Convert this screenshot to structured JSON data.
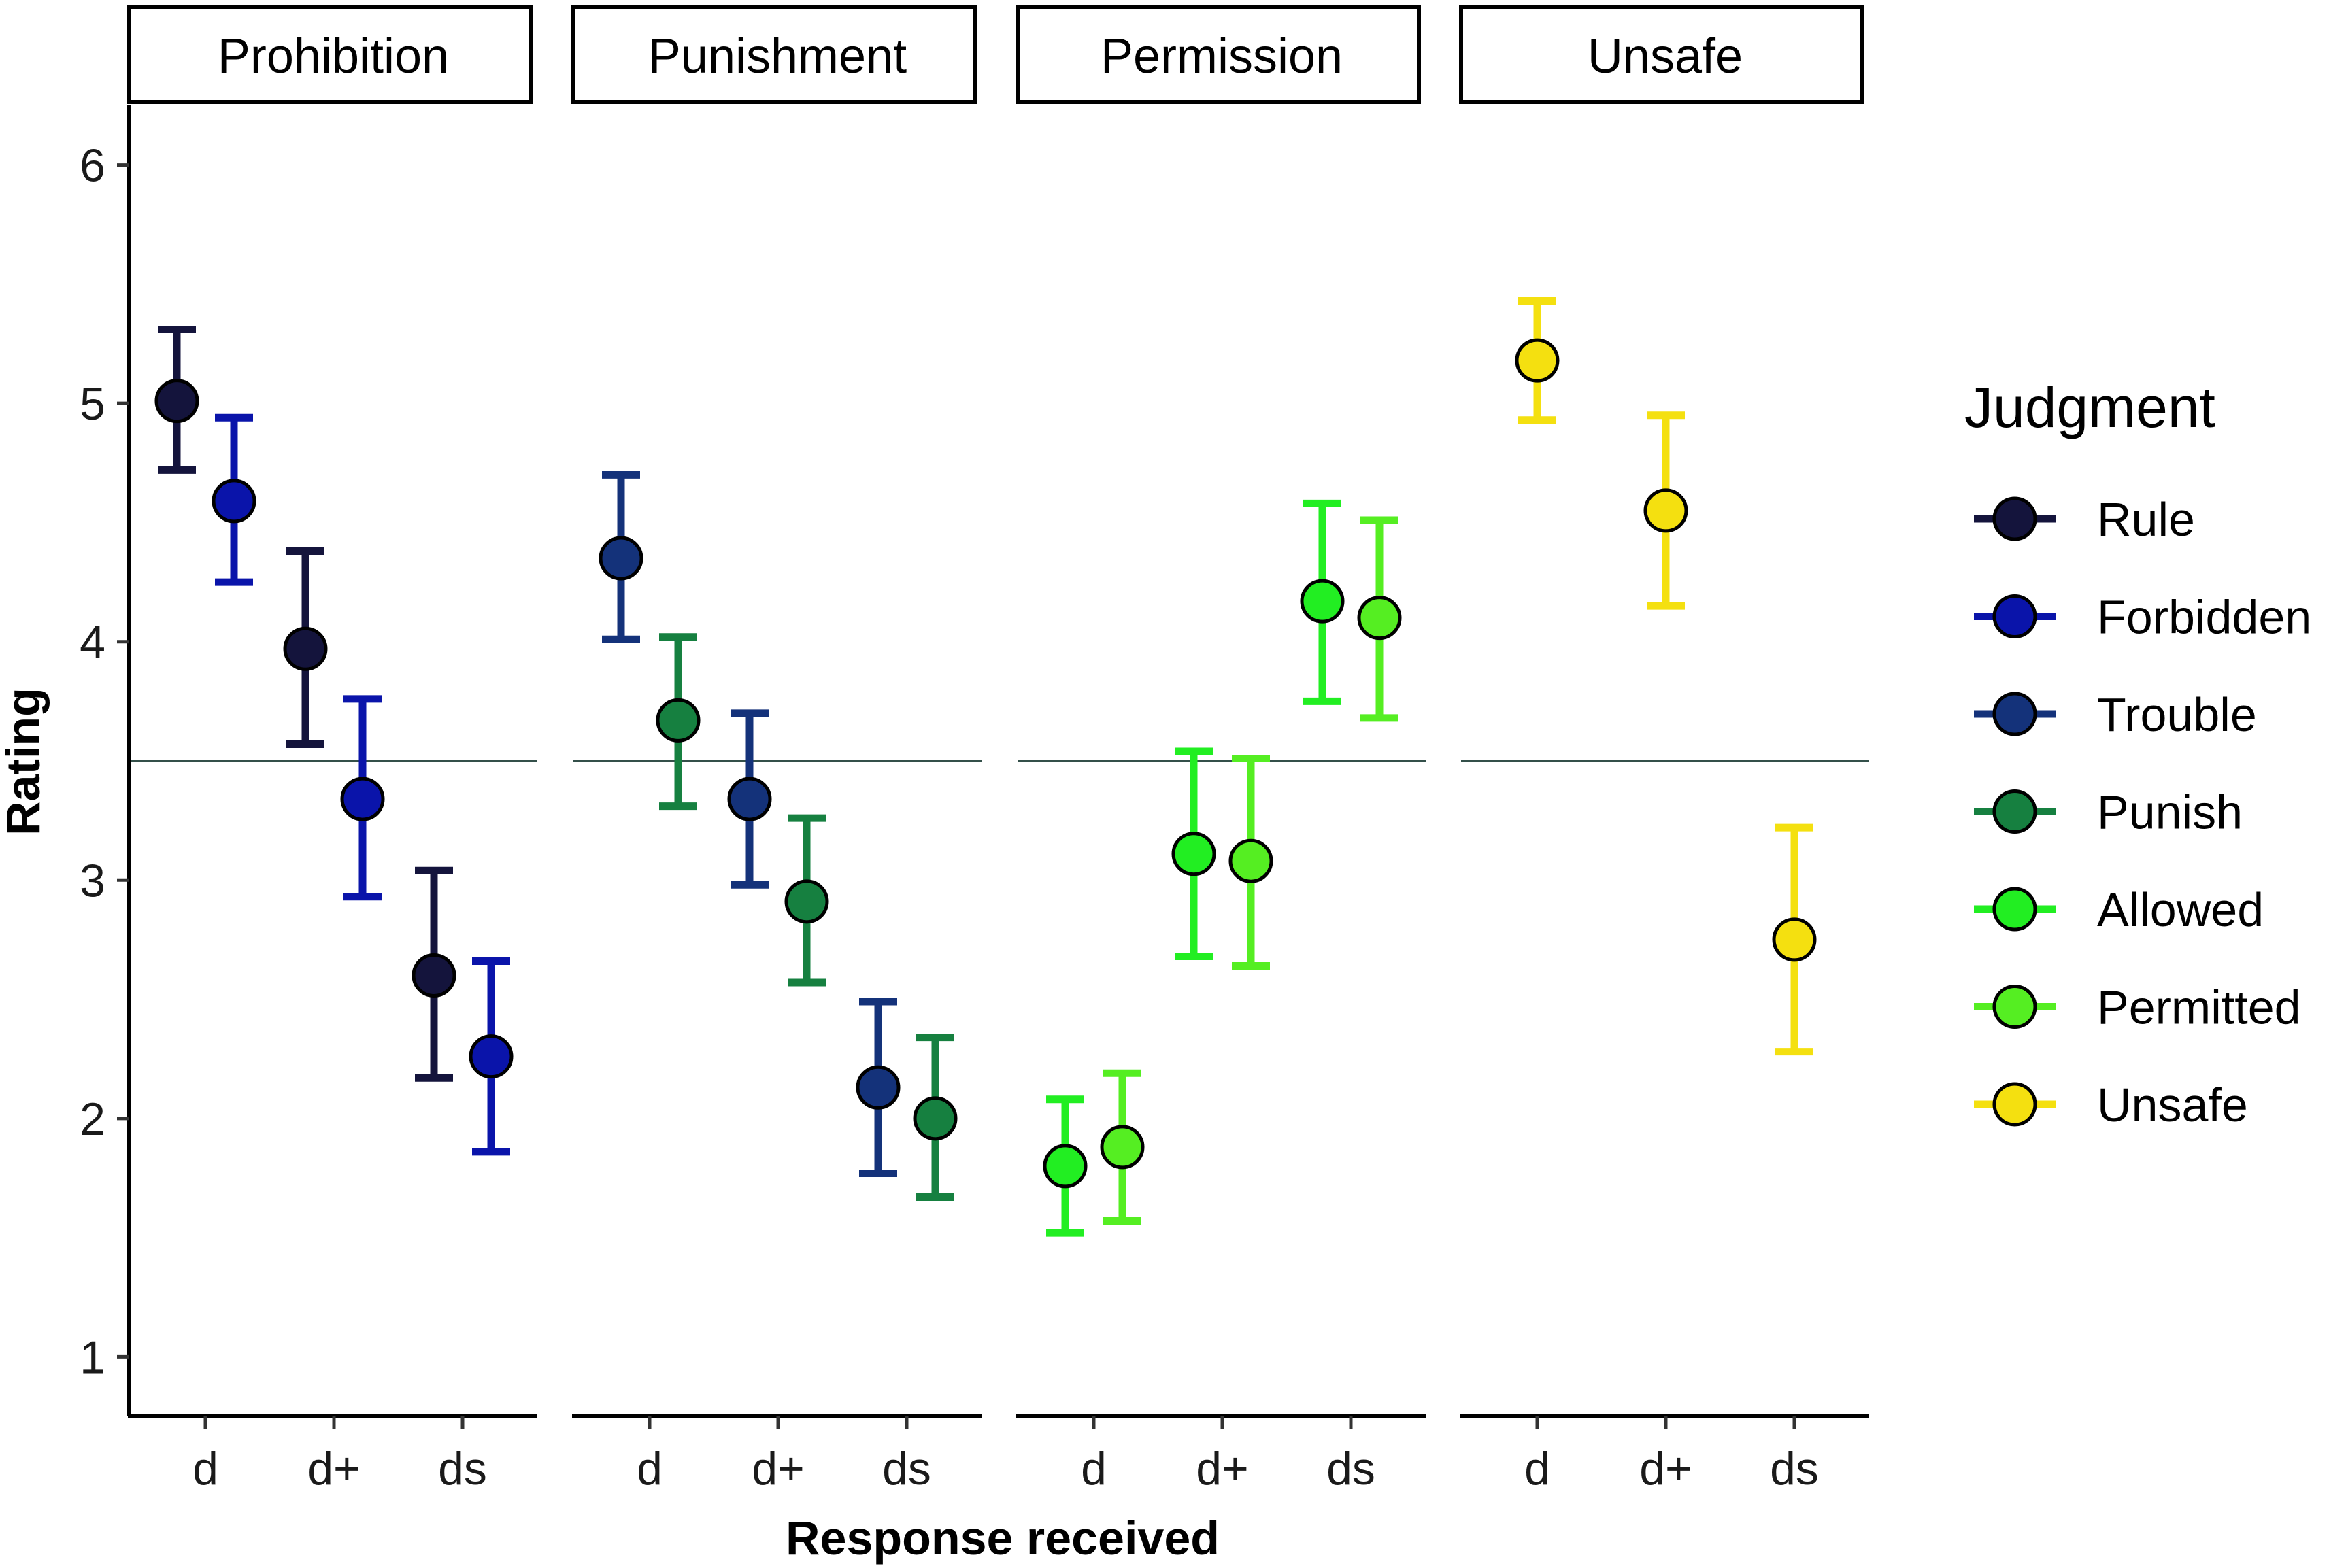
{
  "chart_data": {
    "type": "scatter",
    "ylabel": "Rating",
    "xlabel": "Response received",
    "ylim": [
      0.75,
      6.25
    ],
    "yticks": [
      1,
      2,
      3,
      4,
      5,
      6
    ],
    "reference_line": 3.5,
    "categories": [
      "d",
      "d+",
      "ds"
    ],
    "panels": [
      {
        "title": "Prohibition",
        "series": [
          {
            "name": "Rule",
            "color": "#14143c",
            "points": [
              {
                "x": "d",
                "mean": 5.01,
                "lo": 4.72,
                "hi": 5.31
              },
              {
                "x": "d+",
                "mean": 3.97,
                "lo": 3.57,
                "hi": 4.38
              },
              {
                "x": "ds",
                "mean": 2.6,
                "lo": 2.17,
                "hi": 3.04
              }
            ]
          },
          {
            "name": "Forbidden",
            "color": "#0a14aa",
            "points": [
              {
                "x": "d",
                "mean": 4.59,
                "lo": 4.25,
                "hi": 4.94
              },
              {
                "x": "d+",
                "mean": 3.34,
                "lo": 2.93,
                "hi": 3.76
              },
              {
                "x": "ds",
                "mean": 2.26,
                "lo": 1.86,
                "hi": 2.66
              }
            ]
          }
        ]
      },
      {
        "title": "Punishment",
        "series": [
          {
            "name": "Trouble",
            "color": "#14327a",
            "points": [
              {
                "x": "d",
                "mean": 4.35,
                "lo": 4.01,
                "hi": 4.7
              },
              {
                "x": "d+",
                "mean": 3.34,
                "lo": 2.98,
                "hi": 3.7
              },
              {
                "x": "ds",
                "mean": 2.13,
                "lo": 1.77,
                "hi": 2.49
              }
            ]
          },
          {
            "name": "Punish",
            "color": "#168040",
            "points": [
              {
                "x": "d",
                "mean": 3.67,
                "lo": 3.31,
                "hi": 4.02
              },
              {
                "x": "d+",
                "mean": 2.91,
                "lo": 2.57,
                "hi": 3.26
              },
              {
                "x": "ds",
                "mean": 2.0,
                "lo": 1.67,
                "hi": 2.34
              }
            ]
          }
        ]
      },
      {
        "title": "Permission",
        "series": [
          {
            "name": "Allowed",
            "color": "#22ee22",
            "points": [
              {
                "x": "d",
                "mean": 1.8,
                "lo": 1.52,
                "hi": 2.08
              },
              {
                "x": "d+",
                "mean": 3.11,
                "lo": 2.68,
                "hi": 3.54
              },
              {
                "x": "ds",
                "mean": 4.17,
                "lo": 3.75,
                "hi": 4.58
              }
            ]
          },
          {
            "name": "Permitted",
            "color": "#55ee22",
            "points": [
              {
                "x": "d",
                "mean": 1.88,
                "lo": 1.57,
                "hi": 2.19
              },
              {
                "x": "d+",
                "mean": 3.08,
                "lo": 2.64,
                "hi": 3.51
              },
              {
                "x": "ds",
                "mean": 4.1,
                "lo": 3.68,
                "hi": 4.51
              }
            ]
          }
        ]
      },
      {
        "title": "Unsafe",
        "series": [
          {
            "name": "Unsafe",
            "color": "#f4e010",
            "points": [
              {
                "x": "d",
                "mean": 5.18,
                "lo": 4.93,
                "hi": 5.43
              },
              {
                "x": "d+",
                "mean": 4.55,
                "lo": 4.15,
                "hi": 4.95
              },
              {
                "x": "ds",
                "mean": 2.75,
                "lo": 2.28,
                "hi": 3.22
              }
            ]
          }
        ]
      }
    ],
    "legend": {
      "title": "Judgment",
      "position": "right",
      "items": [
        {
          "label": "Rule",
          "color": "#14143c"
        },
        {
          "label": "Forbidden",
          "color": "#0a14aa"
        },
        {
          "label": "Trouble",
          "color": "#14327a"
        },
        {
          "label": "Punish",
          "color": "#168040"
        },
        {
          "label": "Allowed",
          "color": "#22ee22"
        },
        {
          "label": "Permitted",
          "color": "#55ee22"
        },
        {
          "label": "Unsafe",
          "color": "#f4e010"
        }
      ]
    }
  }
}
